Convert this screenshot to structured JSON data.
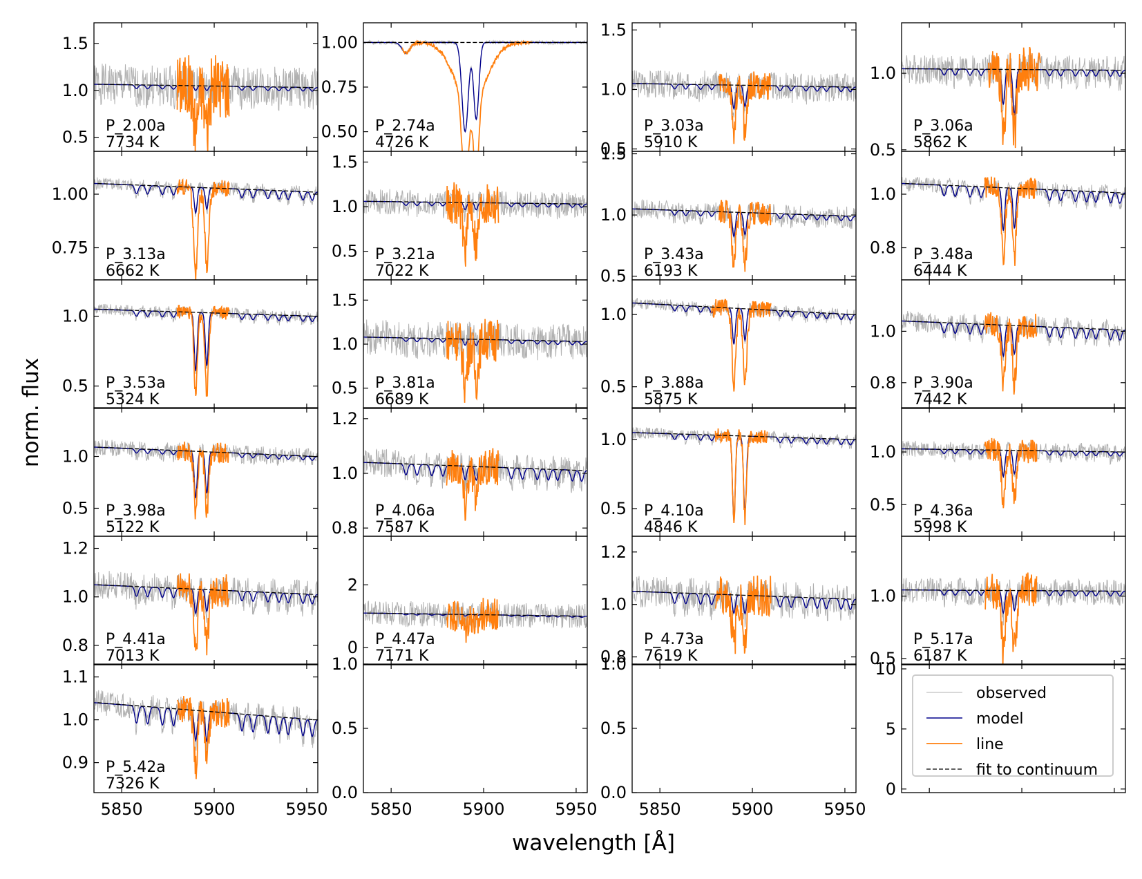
{
  "figure": {
    "xlabel": "wavelength [Å]",
    "ylabel": "norm. flux"
  },
  "colors": {
    "observed": "#b0b0b0",
    "model": "#00008b",
    "line": "#ff7f0e",
    "continuum": "#000000"
  },
  "legend": {
    "entries": [
      "observed",
      "model",
      "line",
      "fit to continuum"
    ]
  },
  "chart_data": [
    {
      "type": "line",
      "label": "P_2.00a",
      "temp": "7734 K",
      "xlim": [
        5835,
        5956
      ],
      "ylim": [
        0.35,
        1.72
      ],
      "yticks": [
        "0.5",
        "1.0",
        "1.5"
      ],
      "ytickvals": [
        0.5,
        1.0,
        1.5
      ],
      "cont": [
        1.065,
        1.03
      ],
      "noise": 0.22,
      "lineNoise": 0.35,
      "depth1": 0.05,
      "depth2": 0.05,
      "lineDepth": 0.45,
      "lineRange": [
        5880,
        5908
      ],
      "seed": 1
    },
    {
      "type": "line",
      "label": "P_2.74a",
      "temp": "4726 K",
      "xlim": [
        5835,
        5956
      ],
      "ylim": [
        0.39,
        1.11
      ],
      "yticks": [
        "0.50",
        "0.75",
        "1.00"
      ],
      "ytickvals": [
        0.5,
        0.75,
        1.0
      ],
      "cont": [
        1.0,
        1.0
      ],
      "noise": 0.01,
      "lineNoise": 0.0,
      "depth1": 0.5,
      "depth2": 0.43,
      "lineDepth": 0.62,
      "lineRange": [
        5856,
        5926
      ],
      "broad": true,
      "seed": 2
    },
    {
      "type": "line",
      "label": "P_3.03a",
      "temp": "5910 K",
      "xlim": [
        5835,
        5956
      ],
      "ylim": [
        0.48,
        1.56
      ],
      "yticks": [
        "0.5",
        "1.0",
        "1.5"
      ],
      "ytickvals": [
        0.5,
        1.0,
        1.5
      ],
      "cont": [
        1.05,
        1.02
      ],
      "noise": 0.12,
      "lineNoise": 0.12,
      "depth1": 0.2,
      "depth2": 0.18,
      "lineDepth": 0.4,
      "lineRange": [
        5882,
        5910
      ],
      "seed": 3
    },
    {
      "type": "line",
      "label": "P_3.06a",
      "temp": "5862 K",
      "xlim": [
        5835,
        5956
      ],
      "ylim": [
        0.49,
        1.33
      ],
      "yticks": [
        "0.5",
        "1.0"
      ],
      "ytickvals": [
        0.5,
        1.0
      ],
      "cont": [
        1.03,
        1.02
      ],
      "noise": 0.1,
      "lineNoise": 0.15,
      "depth1": 0.23,
      "depth2": 0.3,
      "lineDepth": 0.45,
      "lineRange": [
        5882,
        5910
      ],
      "seed": 4
    },
    {
      "type": "line",
      "label": "P_3.13a",
      "temp": "6662 K",
      "xlim": [
        5835,
        5956
      ],
      "ylim": [
        0.6,
        1.2
      ],
      "yticks": [
        "0.75",
        "1.00"
      ],
      "ytickvals": [
        0.75,
        1.0
      ],
      "cont": [
        1.05,
        1.01
      ],
      "noise": 0.03,
      "lineNoise": 0.04,
      "depth1": 0.12,
      "depth2": 0.1,
      "lineDepth": 0.4,
      "lineRange": [
        5880,
        5908
      ],
      "seed": 5
    },
    {
      "type": "line",
      "label": "P_3.21a",
      "temp": "7022 K",
      "xlim": [
        5835,
        5956
      ],
      "ylim": [
        0.18,
        1.62
      ],
      "yticks": [
        "0.5",
        "1.0",
        "1.5"
      ],
      "ytickvals": [
        0.5,
        1.0,
        1.5
      ],
      "cont": [
        1.06,
        1.03
      ],
      "noise": 0.14,
      "lineNoise": 0.25,
      "depth1": 0.08,
      "depth2": 0.08,
      "lineDepth": 0.5,
      "lineRange": [
        5880,
        5908
      ],
      "seed": 6
    },
    {
      "type": "line",
      "label": "P_3.43a",
      "temp": "6193 K",
      "xlim": [
        5835,
        5956
      ],
      "ylim": [
        0.47,
        1.52
      ],
      "yticks": [
        "0.5",
        "1.0",
        "1.5"
      ],
      "ytickvals": [
        0.5,
        1.0,
        1.5
      ],
      "cont": [
        1.05,
        0.99
      ],
      "noise": 0.08,
      "lineNoise": 0.1,
      "depth1": 0.2,
      "depth2": 0.18,
      "lineDepth": 0.45,
      "lineRange": [
        5882,
        5910
      ],
      "seed": 7
    },
    {
      "type": "line",
      "label": "P_3.48a",
      "temp": "6444 K",
      "xlim": [
        5835,
        5956
      ],
      "ylim": [
        0.68,
        1.16
      ],
      "yticks": [
        "0.8",
        "1.0"
      ],
      "ytickvals": [
        0.8,
        1.0
      ],
      "cont": [
        1.04,
        1.005
      ],
      "noise": 0.03,
      "lineNoise": 0.04,
      "depth1": 0.16,
      "depth2": 0.15,
      "lineDepth": 0.28,
      "lineRange": [
        5880,
        5908
      ],
      "seed": 8
    },
    {
      "type": "line",
      "label": "P_3.53a",
      "temp": "5324 K",
      "xlim": [
        5835,
        5956
      ],
      "ylim": [
        0.34,
        1.26
      ],
      "yticks": [
        "0.5",
        "1.0"
      ],
      "ytickvals": [
        0.5,
        1.0
      ],
      "cont": [
        1.05,
        1.0
      ],
      "noise": 0.04,
      "lineNoise": 0.05,
      "depth1": 0.42,
      "depth2": 0.38,
      "lineDepth": 0.6,
      "lineRange": [
        5880,
        5908
      ],
      "seed": 9
    },
    {
      "type": "line",
      "label": "P_3.81a",
      "temp": "6689 K",
      "xlim": [
        5835,
        5956
      ],
      "ylim": [
        0.27,
        1.73
      ],
      "yticks": [
        "0.5",
        "1.0",
        "1.5"
      ],
      "ytickvals": [
        0.5,
        1.0,
        1.5
      ],
      "cont": [
        1.08,
        1.03
      ],
      "noise": 0.2,
      "lineNoise": 0.25,
      "depth1": 0.07,
      "depth2": 0.07,
      "lineDepth": 0.5,
      "lineRange": [
        5880,
        5908
      ],
      "seed": 10
    },
    {
      "type": "line",
      "label": "P_3.88a",
      "temp": "5875 K",
      "xlim": [
        5835,
        5956
      ],
      "ylim": [
        0.35,
        1.24
      ],
      "yticks": [
        "0.5",
        "1.0"
      ],
      "ytickvals": [
        0.5,
        1.0
      ],
      "cont": [
        1.08,
        1.0
      ],
      "noise": 0.04,
      "lineNoise": 0.06,
      "depth1": 0.25,
      "depth2": 0.22,
      "lineDepth": 0.55,
      "lineRange": [
        5878,
        5910
      ],
      "seed": 11
    },
    {
      "type": "line",
      "label": "P_3.90a",
      "temp": "7442 K",
      "xlim": [
        5835,
        5956
      ],
      "ylim": [
        0.7,
        1.2
      ],
      "yticks": [
        "0.8",
        "1.0"
      ],
      "ytickvals": [
        0.8,
        1.0
      ],
      "cont": [
        1.04,
        1.005
      ],
      "noise": 0.04,
      "lineNoise": 0.05,
      "depth1": 0.12,
      "depth2": 0.11,
      "lineDepth": 0.24,
      "lineRange": [
        5880,
        5908
      ],
      "seed": 12
    },
    {
      "type": "line",
      "label": "P_3.98a",
      "temp": "5122 K",
      "xlim": [
        5835,
        5956
      ],
      "ylim": [
        0.23,
        1.47
      ],
      "yticks": [
        "0.5",
        "1.0"
      ],
      "ytickvals": [
        0.5,
        1.0
      ],
      "cont": [
        1.09,
        1.0
      ],
      "noise": 0.08,
      "lineNoise": 0.1,
      "depth1": 0.45,
      "depth2": 0.4,
      "lineDepth": 0.65,
      "lineRange": [
        5880,
        5908
      ],
      "seed": 13
    },
    {
      "type": "line",
      "label": "P_4.06a",
      "temp": "7587 K",
      "xlim": [
        5835,
        5956
      ],
      "ylim": [
        0.77,
        1.24
      ],
      "yticks": [
        "0.8",
        "1.0",
        "1.2"
      ],
      "ytickvals": [
        0.8,
        1.0,
        1.2
      ],
      "cont": [
        1.04,
        1.01
      ],
      "noise": 0.05,
      "lineNoise": 0.07,
      "depth1": 0.05,
      "depth2": 0.05,
      "lineDepth": 0.14,
      "lineRange": [
        5880,
        5908
      ],
      "seed": 14
    },
    {
      "type": "line",
      "label": "P_4.10a",
      "temp": "4846 K",
      "xlim": [
        5835,
        5956
      ],
      "ylim": [
        0.3,
        1.23
      ],
      "yticks": [
        "0.5",
        "1.0"
      ],
      "ytickvals": [
        0.5,
        1.0
      ],
      "cont": [
        1.05,
        1.0
      ],
      "noise": 0.04,
      "lineNoise": 0.05,
      "depth1": 0.6,
      "depth2": 0.55,
      "lineDepth": 0.6,
      "lineRange": [
        5880,
        5908
      ],
      "seed": 15
    },
    {
      "type": "line",
      "label": "P_4.36a",
      "temp": "5998 K",
      "xlim": [
        5835,
        5956
      ],
      "ylim": [
        0.2,
        1.42
      ],
      "yticks": [
        "0.5",
        "1.0"
      ],
      "ytickvals": [
        0.5,
        1.0
      ],
      "cont": [
        1.03,
        1.0
      ],
      "noise": 0.08,
      "lineNoise": 0.12,
      "depth1": 0.25,
      "depth2": 0.22,
      "lineDepth": 0.5,
      "lineRange": [
        5880,
        5908
      ],
      "seed": 16
    },
    {
      "type": "line",
      "label": "P_4.41a",
      "temp": "7013 K",
      "xlim": [
        5835,
        5956
      ],
      "ylim": [
        0.72,
        1.25
      ],
      "yticks": [
        "0.8",
        "1.0",
        "1.2"
      ],
      "ytickvals": [
        0.8,
        1.0,
        1.2
      ],
      "cont": [
        1.05,
        1.01
      ],
      "noise": 0.06,
      "lineNoise": 0.07,
      "depth1": 0.1,
      "depth2": 0.09,
      "lineDepth": 0.24,
      "lineRange": [
        5880,
        5908
      ],
      "seed": 17
    },
    {
      "type": "line",
      "label": "P_4.47a",
      "temp": "7171 K",
      "xlim": [
        5835,
        5956
      ],
      "ylim": [
        -0.55,
        3.55
      ],
      "yticks": [
        "0",
        "2"
      ],
      "ytickvals": [
        0,
        2
      ],
      "cont": [
        1.1,
        1.0
      ],
      "noise": 0.4,
      "lineNoise": 0.55,
      "depth1": 0.05,
      "depth2": 0.05,
      "lineDepth": 0.5,
      "lineRange": [
        5880,
        5908
      ],
      "seed": 18
    },
    {
      "type": "line",
      "label": "P_4.73a",
      "temp": "7619 K",
      "xlim": [
        5835,
        5956
      ],
      "ylim": [
        0.77,
        1.26
      ],
      "yticks": [
        "0.8",
        "1.0",
        "1.2"
      ],
      "ytickvals": [
        0.8,
        1.0,
        1.2
      ],
      "cont": [
        1.05,
        1.02
      ],
      "noise": 0.06,
      "lineNoise": 0.08,
      "depth1": 0.07,
      "depth2": 0.07,
      "lineDepth": 0.2,
      "lineRange": [
        5880,
        5910
      ],
      "seed": 19
    },
    {
      "type": "line",
      "label": "P_5.17a",
      "temp": "6187 K",
      "xlim": [
        5835,
        5956
      ],
      "ylim": [
        0.45,
        1.48
      ],
      "yticks": [
        "0.5",
        "1.0"
      ],
      "ytickvals": [
        0.5,
        1.0
      ],
      "cont": [
        1.05,
        1.04
      ],
      "noise": 0.1,
      "lineNoise": 0.15,
      "depth1": 0.18,
      "depth2": 0.16,
      "lineDepth": 0.5,
      "lineRange": [
        5880,
        5908
      ],
      "seed": 20
    },
    {
      "type": "line",
      "label": "P_5.42a",
      "temp": "7326 K",
      "xlim": [
        5835,
        5956
      ],
      "ylim": [
        0.83,
        1.13
      ],
      "yticks": [
        "0.9",
        "1.0",
        "1.1"
      ],
      "ytickvals": [
        0.9,
        1.0,
        1.1
      ],
      "cont": [
        1.04,
        1.0
      ],
      "noise": 0.03,
      "lineNoise": 0.035,
      "depth1": 0.07,
      "depth2": 0.07,
      "lineDepth": 0.13,
      "lineRange": [
        5880,
        5908
      ],
      "seed": 21
    },
    {
      "type": "empty",
      "xlim": [
        5835,
        5956
      ],
      "ylim": [
        0.0,
        1.0
      ],
      "yticks": [
        "0.0",
        "0.5",
        "1.0"
      ],
      "ytickvals": [
        0.0,
        0.5,
        1.0
      ]
    },
    {
      "type": "empty",
      "xlim": [
        5835,
        5956
      ],
      "ylim": [
        0.0,
        1.0
      ],
      "yticks": [
        "0.0",
        "0.5",
        "1.0"
      ],
      "ytickvals": [
        0.0,
        0.5,
        1.0
      ]
    },
    {
      "type": "legend",
      "ylim": [
        -0.3,
        10.4
      ],
      "yticks": [
        "0",
        "5",
        "10"
      ],
      "ytickvals": [
        0,
        5,
        10
      ]
    }
  ],
  "xaxis": {
    "ticks": [
      "5850",
      "5900",
      "5950"
    ],
    "tickvals": [
      5850,
      5900,
      5950
    ]
  }
}
